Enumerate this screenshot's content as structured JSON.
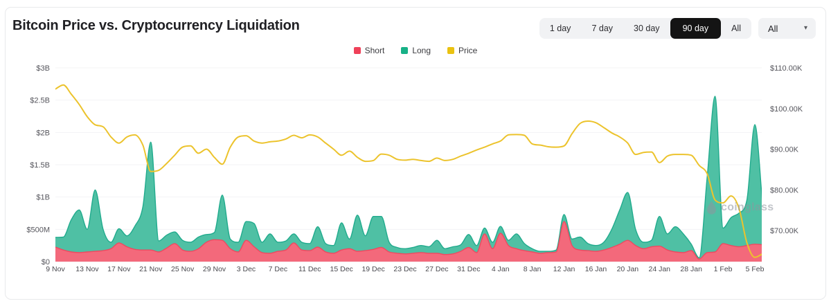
{
  "card": {
    "title": "Bitcoin Price vs. Cryptocurrency Liquidation"
  },
  "controls": {
    "range_buttons": [
      {
        "label": "1 day",
        "active": false
      },
      {
        "label": "7 day",
        "active": false
      },
      {
        "label": "30 day",
        "active": false
      },
      {
        "label": "90 day",
        "active": true
      },
      {
        "label": "All",
        "active": false
      }
    ],
    "dropdown": {
      "value": "All",
      "caret": "▾"
    }
  },
  "legend": [
    {
      "label": "Short",
      "color": "#ef4159"
    },
    {
      "label": "Long",
      "color": "#17b187"
    },
    {
      "label": "Price",
      "color": "#eac211"
    }
  ],
  "watermark": {
    "text": "coinglass"
  },
  "chart_data": {
    "type": "area",
    "title": "Bitcoin Price vs. Cryptocurrency Liquidation",
    "x_start": "9 Nov",
    "x_end": "5 Feb",
    "x_days": 90,
    "x_ticks": [
      {
        "label": "9 Nov",
        "day": 0
      },
      {
        "label": "13 Nov",
        "day": 4
      },
      {
        "label": "17 Nov",
        "day": 8
      },
      {
        "label": "21 Nov",
        "day": 12
      },
      {
        "label": "25 Nov",
        "day": 16
      },
      {
        "label": "29 Nov",
        "day": 20
      },
      {
        "label": "3 Dec",
        "day": 24
      },
      {
        "label": "7 Dec",
        "day": 28
      },
      {
        "label": "11 Dec",
        "day": 32
      },
      {
        "label": "15 Dec",
        "day": 36
      },
      {
        "label": "19 Dec",
        "day": 40
      },
      {
        "label": "23 Dec",
        "day": 44
      },
      {
        "label": "27 Dec",
        "day": 48
      },
      {
        "label": "31 Dec",
        "day": 52
      },
      {
        "label": "4 Jan",
        "day": 56
      },
      {
        "label": "8 Jan",
        "day": 60
      },
      {
        "label": "12 Jan",
        "day": 64
      },
      {
        "label": "16 Jan",
        "day": 68
      },
      {
        "label": "20 Jan",
        "day": 72
      },
      {
        "label": "24 Jan",
        "day": 76
      },
      {
        "label": "28 Jan",
        "day": 80
      },
      {
        "label": "1 Feb",
        "day": 84
      },
      {
        "label": "5 Feb",
        "day": 88
      }
    ],
    "left_axis": {
      "title": "Liquidation",
      "range_M": [
        0,
        3000
      ],
      "ticks": [
        {
          "label": "$0",
          "value": 0
        },
        {
          "label": "$500M",
          "value": 500
        },
        {
          "label": "$1B",
          "value": 1000
        },
        {
          "label": "$1.5B",
          "value": 1500
        },
        {
          "label": "$2B",
          "value": 2000
        },
        {
          "label": "$2.5B",
          "value": 2500
        },
        {
          "label": "$3B",
          "value": 3000
        }
      ]
    },
    "right_axis": {
      "title": "BTC Price",
      "ticks": [
        {
          "label": "$70.00K",
          "value": 70
        },
        {
          "label": "$80.00K",
          "value": 80
        },
        {
          "label": "$90.00K",
          "value": 90
        },
        {
          "label": "$100.00K",
          "value": 100
        },
        {
          "label": "$110.00K",
          "value": 110
        }
      ],
      "calibration": {
        "value_top": 110,
        "value_ref": 70
      }
    },
    "grid": true,
    "legend_position": "top-center",
    "series": [
      {
        "name": "Short",
        "type": "area",
        "stacked": true,
        "axis": "left",
        "unit": "M USD",
        "stroke": "#ee4960",
        "fill": "#f3697b",
        "values_M": [
          225,
          180,
          150,
          140,
          150,
          160,
          170,
          200,
          290,
          230,
          190,
          180,
          180,
          150,
          210,
          280,
          180,
          160,
          200,
          300,
          340,
          330,
          200,
          150,
          330,
          230,
          140,
          130,
          160,
          180,
          290,
          180,
          170,
          225,
          150,
          130,
          180,
          200,
          160,
          170,
          190,
          220,
          150,
          130,
          120,
          130,
          140,
          130,
          130,
          110,
          120,
          160,
          220,
          140,
          430,
          200,
          440,
          250,
          200,
          170,
          150,
          130,
          140,
          150,
          620,
          250,
          180,
          170,
          160,
          180,
          220,
          270,
          330,
          250,
          200,
          230,
          240,
          180,
          150,
          140,
          170,
          40,
          140,
          150,
          280,
          250,
          230,
          250,
          270,
          260
        ]
      },
      {
        "name": "Long",
        "type": "area",
        "stacked": true,
        "axis": "left",
        "unit": "M USD",
        "stroke": "#21ab8d",
        "fill": "#4fc0a4",
        "values_M": [
          150,
          200,
          500,
          660,
          350,
          950,
          330,
          100,
          220,
          170,
          360,
          670,
          1670,
          170,
          200,
          180,
          150,
          140,
          180,
          120,
          110,
          700,
          150,
          150,
          290,
          360,
          160,
          300,
          140,
          140,
          140,
          120,
          110,
          315,
          130,
          120,
          420,
          150,
          560,
          230,
          510,
          480,
          150,
          90,
          80,
          90,
          110,
          100,
          200,
          90,
          110,
          100,
          200,
          110,
          90,
          100,
          105,
          80,
          230,
          110,
          50,
          30,
          20,
          30,
          110,
          100,
          200,
          110,
          90,
          120,
          280,
          530,
          740,
          250,
          100,
          100,
          460,
          250,
          390,
          290,
          100,
          20,
          1160,
          2410,
          240,
          430,
          520,
          700,
          1850,
          590
        ]
      },
      {
        "name": "Price",
        "type": "line",
        "stacked": false,
        "axis": "right",
        "unit": "K USD",
        "stroke": "#ecc32c",
        "values_K": [
          104.8,
          105.8,
          103.5,
          101.0,
          98.0,
          96.0,
          95.5,
          93.0,
          91.5,
          93.0,
          93.5,
          91.0,
          84.5,
          84.8,
          86.5,
          88.5,
          90.5,
          90.8,
          89.0,
          90.0,
          88.0,
          86.3,
          90.5,
          93.0,
          93.3,
          92.0,
          91.5,
          91.8,
          92.0,
          92.5,
          93.4,
          92.8,
          93.5,
          93.0,
          91.5,
          90.0,
          88.5,
          89.5,
          88.0,
          87.0,
          87.2,
          88.8,
          88.5,
          87.5,
          87.3,
          87.5,
          87.2,
          87.0,
          87.8,
          87.2,
          87.5,
          88.3,
          89.0,
          89.8,
          90.5,
          91.3,
          92.0,
          93.5,
          93.6,
          93.4,
          91.3,
          91.0,
          90.6,
          90.5,
          90.8,
          93.8,
          96.3,
          96.9,
          96.5,
          95.3,
          94.0,
          93.0,
          91.5,
          88.7,
          89.2,
          89.3,
          86.7,
          88.3,
          88.7,
          88.7,
          88.5,
          86.0,
          84.0,
          77.5,
          76.8,
          78.5,
          75.5,
          67.0,
          63.4,
          64.3
        ]
      }
    ]
  }
}
